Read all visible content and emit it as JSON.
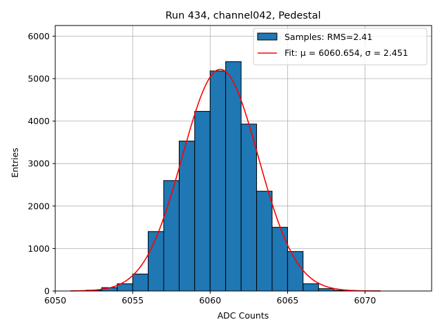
{
  "chart_data": {
    "type": "bar",
    "title": "Run 434, channel042, Pedestal",
    "xlabel": "ADC Counts",
    "ylabel": "Entries",
    "xlim": [
      6050,
      6074.3
    ],
    "ylim": [
      0,
      6250
    ],
    "xticks": [
      6050,
      6055,
      6060,
      6065,
      6070
    ],
    "yticks": [
      0,
      1000,
      2000,
      3000,
      4000,
      5000,
      6000
    ],
    "grid": true,
    "legend_position": "top-right",
    "histogram": {
      "name": "Samples: RMS=2.41",
      "color": "#1f77b4",
      "bin_edges": [
        6051,
        6052,
        6053,
        6054,
        6055,
        6056,
        6057,
        6058,
        6059,
        6060,
        6061,
        6062,
        6063,
        6064,
        6065,
        6066,
        6067,
        6068,
        6069,
        6070,
        6071
      ],
      "counts": [
        5,
        20,
        80,
        170,
        400,
        1400,
        2600,
        3530,
        4230,
        5180,
        5400,
        3930,
        2350,
        1500,
        930,
        170,
        55,
        15,
        5,
        2
      ]
    },
    "fit": {
      "name": "Fit: μ = 6060.654, σ = 2.451",
      "color": "#ff0000",
      "mu": 6060.654,
      "sigma": 2.451,
      "amplitude": 5220,
      "x_range": [
        6051,
        6071
      ]
    }
  }
}
